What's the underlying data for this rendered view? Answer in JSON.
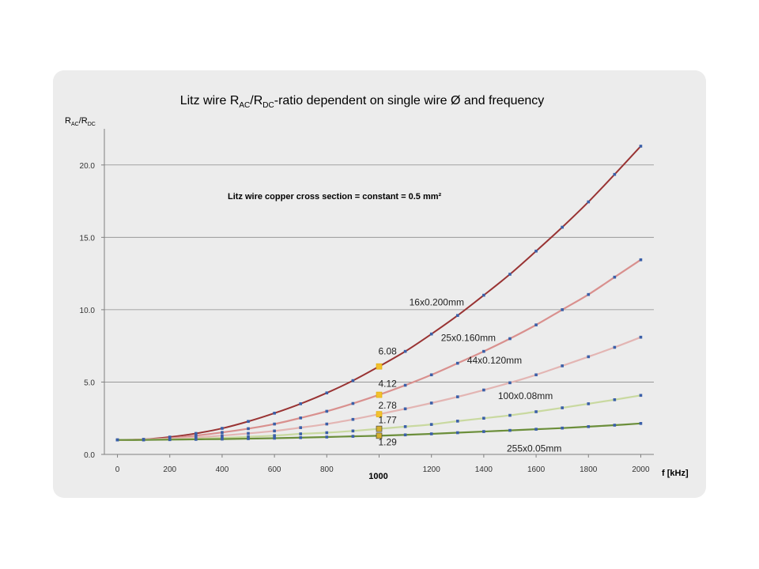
{
  "chart_data": {
    "type": "line",
    "title_prefix": "Litz wire R",
    "title_sub1": "AC",
    "title_mid": "/R",
    "title_sub2": "DC",
    "title_suffix": "-ratio dependent on single wire Ø and frequency",
    "ylabel_main1": "R",
    "ylabel_sub1": "AC",
    "ylabel_main2": "/R",
    "ylabel_sub2": "DC",
    "xlabel": "f  [kHz]",
    "note": "Litz wire copper cross section = constant = 0.5 mm²",
    "xlim": [
      -50,
      2050
    ],
    "ylim": [
      0,
      22.5
    ],
    "xticks": [
      "0",
      "200",
      "400",
      "600",
      "800",
      "1000",
      "1200",
      "1400",
      "1600",
      "1800",
      "2000"
    ],
    "yticks": [
      "0.0",
      "5.0",
      "10.0",
      "15.0",
      "20.0"
    ],
    "y_gridlines": true,
    "x": [
      0,
      100,
      200,
      300,
      400,
      500,
      600,
      700,
      800,
      900,
      1000,
      1100,
      1200,
      1300,
      1400,
      1500,
      1600,
      1700,
      1800,
      1900,
      2000
    ],
    "series": [
      {
        "name": "16x0.200mm",
        "color": "#993333",
        "values": [
          1.0,
          1.04,
          1.2,
          1.45,
          1.8,
          2.28,
          2.85,
          3.5,
          4.25,
          5.1,
          6.08,
          7.12,
          8.32,
          9.6,
          11.0,
          12.45,
          14.05,
          15.7,
          17.45,
          19.35,
          21.3
        ]
      },
      {
        "name": "25x0.160mm",
        "color": "#d9908e",
        "values": [
          1.0,
          1.03,
          1.12,
          1.3,
          1.52,
          1.78,
          2.1,
          2.52,
          2.98,
          3.52,
          4.12,
          4.78,
          5.5,
          6.3,
          7.12,
          8.0,
          8.95,
          10.0,
          11.05,
          12.25,
          13.45
        ]
      },
      {
        "name": "44x0.120mm",
        "color": "#e3b5b3",
        "values": [
          1.0,
          1.02,
          1.08,
          1.17,
          1.3,
          1.45,
          1.62,
          1.85,
          2.1,
          2.42,
          2.78,
          3.15,
          3.55,
          3.98,
          4.45,
          4.95,
          5.5,
          6.12,
          6.75,
          7.4,
          8.1
        ]
      },
      {
        "name": "100x0.08mm",
        "color": "#c9d9a0",
        "values": [
          1.0,
          1.01,
          1.04,
          1.08,
          1.14,
          1.22,
          1.3,
          1.42,
          1.5,
          1.62,
          1.77,
          1.92,
          2.07,
          2.3,
          2.5,
          2.7,
          2.95,
          3.22,
          3.5,
          3.78,
          4.08
        ]
      },
      {
        "name": "255x0.05mm",
        "color": "#6b8e3a",
        "values": [
          1.0,
          1.0,
          1.02,
          1.04,
          1.06,
          1.09,
          1.12,
          1.16,
          1.2,
          1.25,
          1.29,
          1.35,
          1.42,
          1.5,
          1.58,
          1.66,
          1.74,
          1.82,
          1.92,
          2.02,
          2.14
        ]
      }
    ],
    "highlight_x": 1000,
    "highlight_values": [
      6.08,
      4.12,
      2.78,
      1.77,
      1.29
    ],
    "highlight_labels": [
      "6.08",
      "4.12",
      "2.78",
      "1.77",
      "1.29"
    ],
    "highlight_colors": [
      "#f2c12e",
      "#f2c12e",
      "#f2c12e",
      "#d4b030",
      "#d4b030"
    ],
    "highlight_x_label": "1000"
  }
}
